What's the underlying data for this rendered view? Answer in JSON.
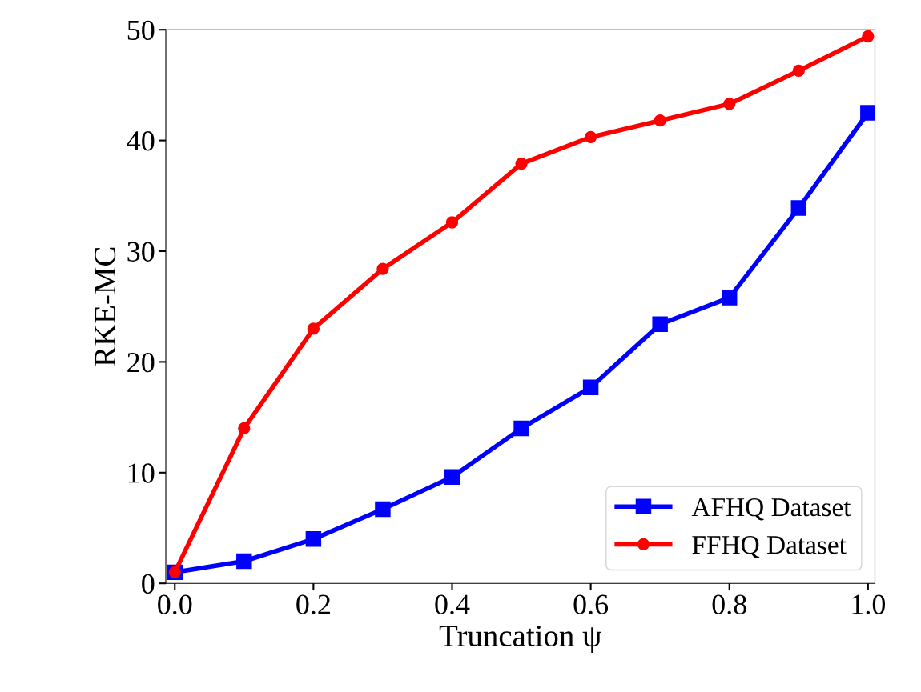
{
  "chart_data": {
    "type": "line",
    "xlabel": "Truncation ψ",
    "ylabel": "RKE-MC",
    "x": [
      0.0,
      0.1,
      0.2,
      0.3,
      0.4,
      0.5,
      0.6,
      0.7,
      0.8,
      0.9,
      1.0
    ],
    "series": [
      {
        "name": "AFHQ Dataset",
        "color": "#0000ff",
        "marker": "square",
        "values": [
          1.0,
          2.0,
          4.0,
          6.7,
          9.6,
          14.0,
          17.7,
          23.4,
          25.8,
          33.9,
          42.5
        ]
      },
      {
        "name": "FFHQ Dataset",
        "color": "#ff0000",
        "marker": "circle",
        "values": [
          1.0,
          14.0,
          23.0,
          28.4,
          32.6,
          37.9,
          40.3,
          41.8,
          43.3,
          46.3,
          49.4
        ]
      }
    ],
    "xlim": [
      -0.013,
      1.01
    ],
    "ylim": [
      0,
      50
    ],
    "xticks": [
      {
        "value": 0.0,
        "label": "0.0"
      },
      0.2,
      0.4,
      0.6,
      0.8,
      {
        "value": 1.0,
        "label": "1.0"
      }
    ],
    "yticks": [
      0,
      10,
      20,
      30,
      40,
      50
    ],
    "legend": "lower right",
    "grid": false,
    "line_style": "solid"
  }
}
